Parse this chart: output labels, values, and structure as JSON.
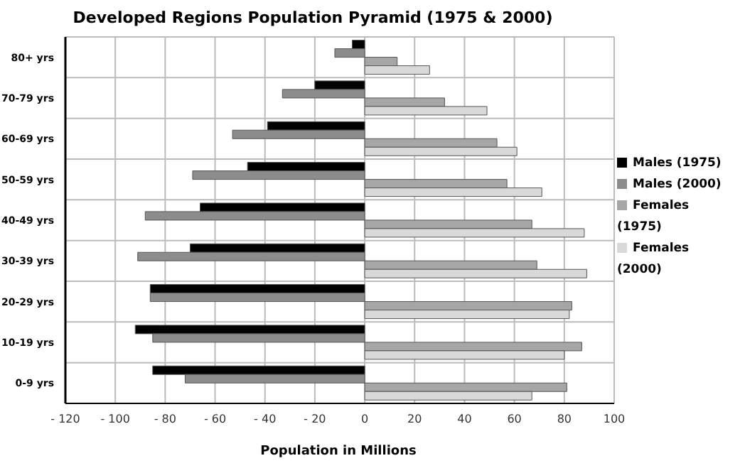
{
  "chart_data": {
    "type": "bar",
    "orientation": "horizontal",
    "title": "Developed Regions Population Pyramid (1975 & 2000)",
    "xlabel": "Population in Millions",
    "categories": [
      "80+ yrs",
      "70-79 yrs",
      "60-69 yrs",
      "50-59 yrs",
      "40-49 yrs",
      "30-39 yrs",
      "20-29 yrs",
      "10-19 yrs",
      "0-9 yrs"
    ],
    "series": [
      {
        "name": "Males (1975)",
        "color": "#000000",
        "values": [
          -5,
          -20,
          -39,
          -47,
          -66,
          -70,
          -86,
          -92,
          -85
        ]
      },
      {
        "name": "Males (2000)",
        "color": "#8c8c8c",
        "values": [
          -12,
          -33,
          -53,
          -69,
          -88,
          -91,
          -86,
          -85,
          -72
        ]
      },
      {
        "name": "Females (1975)",
        "color": "#a6a6a6",
        "values": [
          13,
          32,
          53,
          57,
          67,
          69,
          83,
          87,
          81
        ]
      },
      {
        "name": "Females (2000)",
        "color": "#d9d9d9",
        "values": [
          26,
          49,
          61,
          71,
          88,
          89,
          82,
          80,
          67
        ]
      }
    ],
    "xlim": [
      -120,
      100
    ],
    "xticks": [
      {
        "value": -120,
        "label": "- 120"
      },
      {
        "value": -100,
        "label": "- 100"
      },
      {
        "value": -80,
        "label": "- 80"
      },
      {
        "value": -60,
        "label": "- 60"
      },
      {
        "value": -40,
        "label": "- 40"
      },
      {
        "value": -20,
        "label": "- 20"
      },
      0,
      20,
      40,
      60,
      80,
      100
    ],
    "grid": true,
    "legend": "right"
  }
}
